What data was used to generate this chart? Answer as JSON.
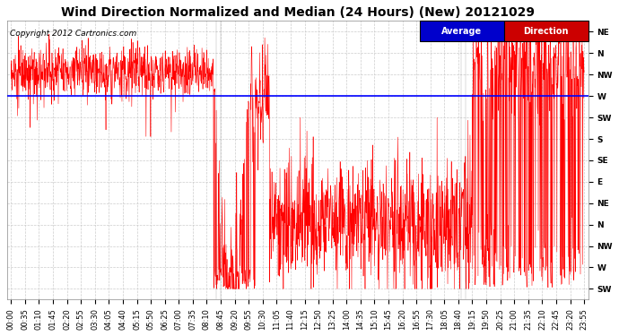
{
  "title": "Wind Direction Normalized and Median (24 Hours) (New) 20121029",
  "copyright": "Copyright 2012 Cartronics.com",
  "ytick_labels": [
    "NE",
    "N",
    "NW",
    "W",
    "SW",
    "S",
    "SE",
    "E",
    "NE",
    "N",
    "NW",
    "W",
    "SW"
  ],
  "ytick_positions": [
    13,
    12,
    11,
    10,
    9,
    8,
    7,
    6,
    5,
    4,
    3,
    2,
    1
  ],
  "ylim": [
    0.5,
    13.5
  ],
  "avg_line_y": 10.0,
  "background_color": "#ffffff",
  "plot_bg_color": "#ffffff",
  "legend_label_avg": "Average",
  "legend_label_dir": "Direction",
  "legend_avg_color": "#0000cc",
  "legend_dir_color": "#cc0000",
  "avg_line_color": "#0000ff",
  "data_line_color": "#ff0000",
  "grid_color": "#cccccc",
  "title_fontsize": 10,
  "copyright_fontsize": 6.5,
  "tick_fontsize": 6.5,
  "xtick_labels": [
    "00:00",
    "00:35",
    "01:10",
    "01:45",
    "02:20",
    "02:55",
    "03:30",
    "04:05",
    "04:40",
    "05:15",
    "05:50",
    "06:25",
    "07:00",
    "07:35",
    "08:10",
    "08:45",
    "09:20",
    "09:55",
    "10:30",
    "11:05",
    "11:40",
    "12:15",
    "12:50",
    "13:25",
    "14:00",
    "14:35",
    "15:10",
    "15:45",
    "16:20",
    "16:55",
    "17:30",
    "18:05",
    "18:40",
    "19:15",
    "19:50",
    "20:25",
    "21:00",
    "21:35",
    "22:10",
    "22:45",
    "23:20",
    "23:55"
  ],
  "n_xticks": 42,
  "seed": 12,
  "figwidth": 6.9,
  "figheight": 3.75,
  "dpi": 100
}
